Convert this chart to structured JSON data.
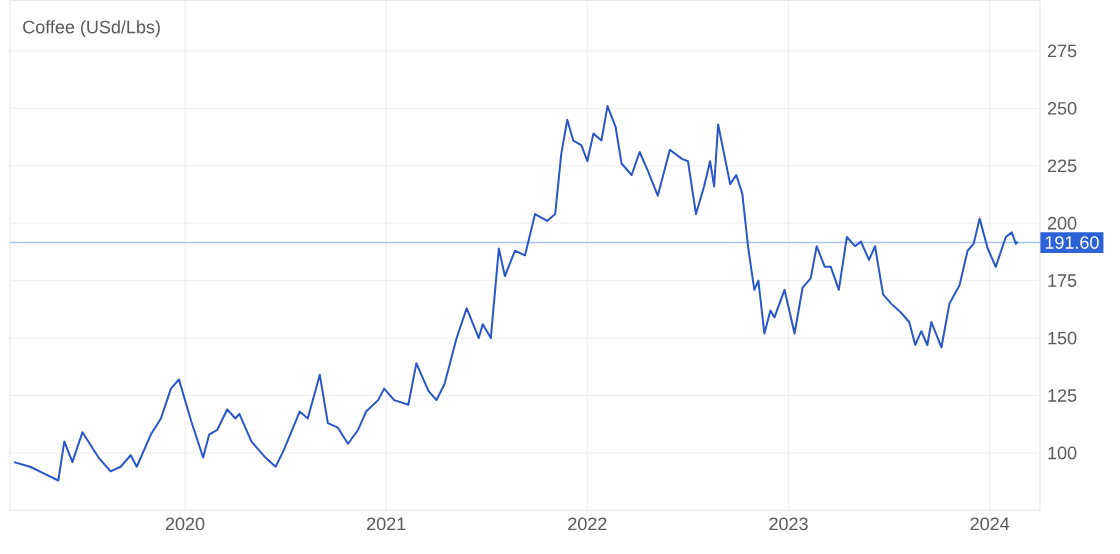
{
  "chart_data": {
    "type": "line",
    "title": "Coffee (USd/Lbs)",
    "x": [
      2019.15,
      2019.23,
      2019.3,
      2019.37,
      2019.4,
      2019.44,
      2019.49,
      2019.57,
      2019.63,
      2019.68,
      2019.73,
      2019.76,
      2019.83,
      2019.88,
      2019.93,
      2019.97,
      2020.03,
      2020.09,
      2020.12,
      2020.16,
      2020.21,
      2020.25,
      2020.27,
      2020.33,
      2020.4,
      2020.45,
      2020.49,
      2020.57,
      2020.61,
      2020.67,
      2020.71,
      2020.76,
      2020.81,
      2020.86,
      2020.9,
      2020.96,
      2020.99,
      2021.04,
      2021.11,
      2021.15,
      2021.21,
      2021.25,
      2021.29,
      2021.35,
      2021.4,
      2021.46,
      2021.48,
      2021.52,
      2021.56,
      2021.59,
      2021.64,
      2021.69,
      2021.74,
      2021.8,
      2021.84,
      2021.87,
      2021.9,
      2021.93,
      2021.97,
      2022.0,
      2022.03,
      2022.07,
      2022.1,
      2022.14,
      2022.17,
      2022.22,
      2022.26,
      2022.3,
      2022.35,
      2022.41,
      2022.47,
      2022.5,
      2022.54,
      2022.58,
      2022.61,
      2022.63,
      2022.65,
      2022.68,
      2022.71,
      2022.74,
      2022.77,
      2022.8,
      2022.83,
      2022.85,
      2022.88,
      2022.91,
      2022.93,
      2022.98,
      2023.03,
      2023.07,
      2023.11,
      2023.14,
      2023.18,
      2023.21,
      2023.25,
      2023.29,
      2023.33,
      2023.36,
      2023.4,
      2023.43,
      2023.47,
      2023.51,
      2023.56,
      2023.6,
      2023.63,
      2023.66,
      2023.69,
      2023.71,
      2023.76,
      2023.8,
      2023.85,
      2023.89,
      2023.92,
      2023.95,
      2023.99,
      2024.03,
      2024.08,
      2024.11,
      2024.13,
      2024.14
    ],
    "series": [
      {
        "color": "#2a56c6",
        "values": [
          96,
          94,
          91,
          88,
          105,
          96,
          109,
          98,
          92,
          94,
          99,
          94,
          108,
          115,
          128,
          132,
          114,
          98,
          108,
          110,
          119,
          115,
          117,
          105,
          98,
          94,
          101,
          118,
          115,
          134,
          113,
          111,
          104,
          110,
          118,
          123,
          128,
          123,
          121,
          139,
          127,
          123,
          130,
          150,
          163,
          150,
          156,
          150,
          189,
          177,
          188,
          186,
          204,
          201,
          204,
          230,
          245,
          236,
          234,
          227,
          239,
          236,
          251,
          242,
          226,
          221,
          231,
          223,
          212,
          232,
          228,
          227,
          204,
          216,
          227,
          216,
          243,
          230,
          217,
          221,
          213,
          189,
          171,
          175,
          152,
          162,
          159,
          171,
          152,
          172,
          176,
          190,
          181,
          181,
          171,
          194,
          190,
          192,
          184,
          190,
          169,
          165,
          161,
          157,
          147,
          153,
          147,
          157,
          146,
          165,
          173,
          188,
          191,
          202,
          189,
          181,
          194,
          196,
          191,
          192
        ]
      }
    ],
    "xlim": [
      2019.13,
      2024.25
    ],
    "ylim": [
      75,
      297
    ],
    "xticks": [
      {
        "value": 2020,
        "label": "2020"
      },
      {
        "value": 2021,
        "label": "2021"
      },
      {
        "value": 2022,
        "label": "2022"
      },
      {
        "value": 2023,
        "label": "2023"
      },
      {
        "value": 2024,
        "label": "2024"
      }
    ],
    "yticks": [
      100,
      125,
      150,
      175,
      200,
      225,
      250,
      275
    ],
    "ref_lines": [
      {
        "axis": "y",
        "value": 191.6,
        "label": "191.60",
        "color": "#a9c4e8"
      }
    ],
    "grid": true,
    "marker": "none",
    "line_style": "solid"
  }
}
